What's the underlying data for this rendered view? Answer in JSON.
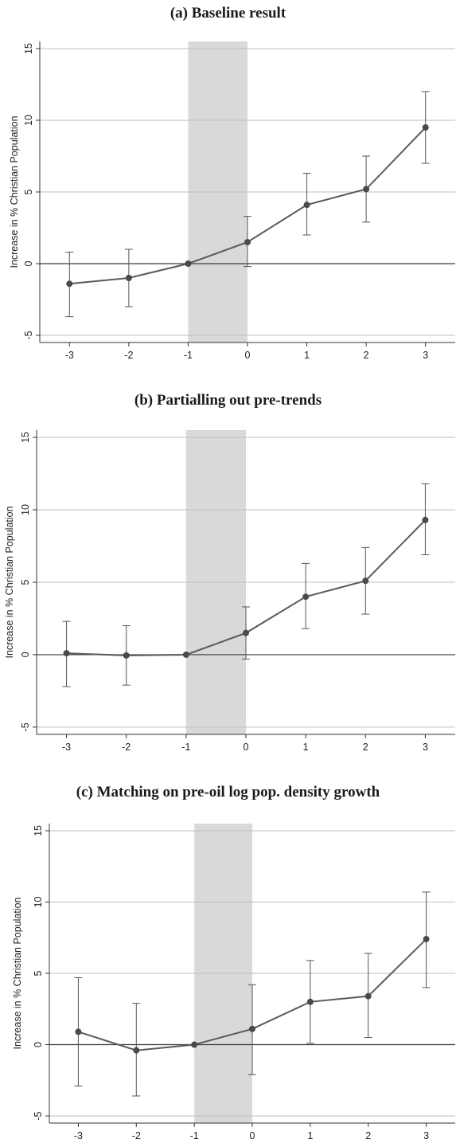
{
  "chart_data": [
    {
      "type": "line",
      "panel_tag": "(a)",
      "title": "Baseline result",
      "ylabel": "Increase in % Christian Population",
      "xlabel": "",
      "x": [
        -3,
        -2,
        -1,
        0,
        1,
        2,
        3
      ],
      "values": [
        -1.4,
        -1.0,
        0.0,
        1.5,
        4.1,
        5.2,
        9.5
      ],
      "ci_low": [
        -3.7,
        -3.0,
        0.0,
        -0.2,
        2.0,
        2.9,
        7.0
      ],
      "ci_high": [
        0.8,
        1.0,
        0.0,
        3.3,
        6.3,
        7.5,
        12.0
      ],
      "xlim": [
        -3.5,
        3.5
      ],
      "ylim": [
        -5.5,
        15.5
      ],
      "yticks": [
        -5,
        0,
        5,
        10,
        15
      ],
      "xticks": [
        -3,
        -2,
        -1,
        0,
        1,
        2,
        3
      ],
      "shaded_region": [
        -1,
        0
      ],
      "grid": true
    },
    {
      "type": "line",
      "panel_tag": "(b)",
      "title": "Partialling out pre-trends",
      "ylabel": "Increase in % Christian Population",
      "xlabel": "",
      "x": [
        -3,
        -2,
        -1,
        0,
        1,
        2,
        3
      ],
      "values": [
        0.1,
        -0.05,
        0.0,
        1.5,
        4.0,
        5.1,
        9.3
      ],
      "ci_low": [
        -2.2,
        -2.1,
        0.0,
        -0.3,
        1.8,
        2.8,
        6.9
      ],
      "ci_high": [
        2.3,
        2.0,
        0.0,
        3.3,
        6.3,
        7.4,
        11.8
      ],
      "xlim": [
        -3.5,
        3.5
      ],
      "ylim": [
        -5.5,
        15.5
      ],
      "yticks": [
        -5,
        0,
        5,
        10,
        15
      ],
      "xticks": [
        -3,
        -2,
        -1,
        0,
        1,
        2,
        3
      ],
      "shaded_region": [
        -1,
        0
      ],
      "grid": true
    },
    {
      "type": "line",
      "panel_tag": "(c)",
      "title": "Matching on pre-oil log pop. density growth",
      "ylabel": "Increase in % Christian Population",
      "xlabel": "",
      "x": [
        -3,
        -2,
        -1,
        0,
        1,
        2,
        3
      ],
      "values": [
        0.9,
        -0.4,
        0.0,
        1.1,
        3.0,
        3.4,
        7.4
      ],
      "ci_low": [
        -2.9,
        -3.6,
        0.0,
        -2.1,
        0.1,
        0.5,
        4.0
      ],
      "ci_high": [
        4.7,
        2.9,
        0.0,
        4.2,
        5.9,
        6.4,
        10.7
      ],
      "xlim": [
        -3.5,
        3.5
      ],
      "ylim": [
        -5.5,
        15.5
      ],
      "yticks": [
        -5,
        0,
        5,
        10,
        15
      ],
      "xticks": [
        -3,
        -2,
        -1,
        0,
        1,
        2,
        3
      ],
      "shaded_region": [
        -1,
        0
      ],
      "grid": true
    }
  ]
}
